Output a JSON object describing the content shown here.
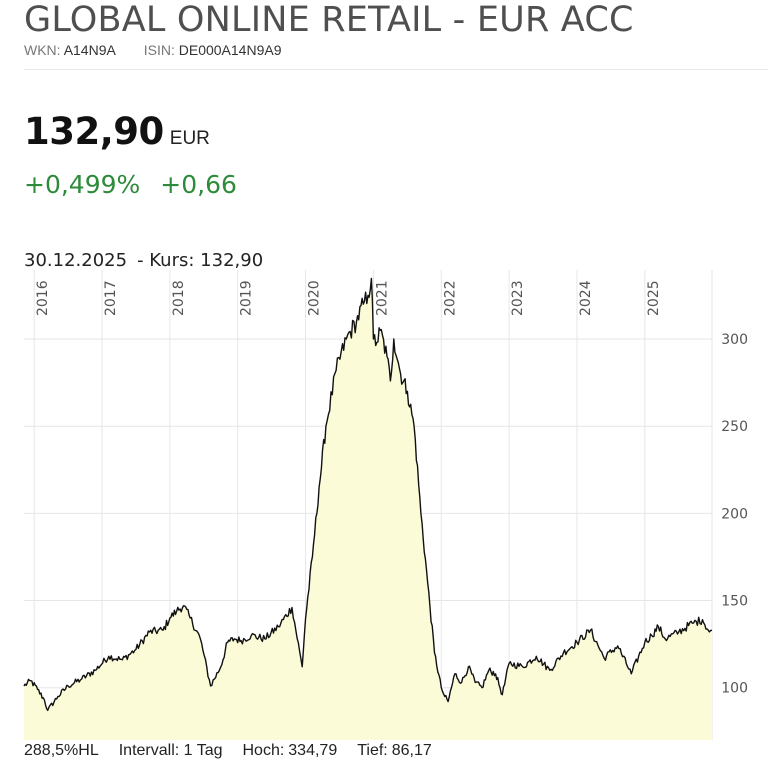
{
  "header": {
    "title": "GLOBAL ONLINE RETAIL - EUR ACC",
    "wkn_label": "WKN:",
    "wkn_value": "A14N9A",
    "isin_label": "ISIN:",
    "isin_value": "DE000A14N9A9"
  },
  "quote": {
    "price": "132,90",
    "currency": "EUR",
    "change_percent": "+0,499%",
    "change_abs": "+0,66"
  },
  "chart_caption": {
    "date": "30.12.2025",
    "kurs": "- Kurs: 132,90"
  },
  "footer": {
    "scale": "288,5%HL",
    "interval": "Intervall: 1 Tag",
    "high_label": "Hoch:",
    "high_value": "334,79",
    "low_label": "Tief:",
    "low_value": "86,17"
  },
  "colors": {
    "line": "#111111",
    "fill": "#fbfbd7",
    "grid": "#e6e6e6",
    "up": "#2e8b3a"
  },
  "chart_data": {
    "type": "area",
    "title": "",
    "xlabel": "",
    "ylabel": "",
    "ylim": [
      70,
      335
    ],
    "y_ticks": [
      100,
      150,
      200,
      250,
      300
    ],
    "x_tick_labels": [
      "2016",
      "2017",
      "2018",
      "2019",
      "2020",
      "2021",
      "2022",
      "2023",
      "2024",
      "2025"
    ],
    "grid": true,
    "series": [
      {
        "x": [
          2015.85,
          2015.95,
          2016.05,
          2016.15,
          2016.2,
          2016.35,
          2016.5,
          2016.7,
          2016.9,
          2017.1,
          2017.3,
          2017.5,
          2017.7,
          2017.9,
          2018.0,
          2018.1,
          2018.2,
          2018.3,
          2018.45,
          2018.6,
          2018.75,
          2018.85,
          2018.95,
          2019.05,
          2019.2,
          2019.4,
          2019.6,
          2019.8,
          2019.95,
          2020.0,
          2020.1,
          2020.2,
          2020.3,
          2020.45,
          2020.6,
          2020.75,
          2020.85,
          2020.92,
          2020.97,
          2021.0,
          2021.05,
          2021.1,
          2021.2,
          2021.25,
          2021.3,
          2021.4,
          2021.5,
          2021.6,
          2021.7,
          2021.8,
          2021.9,
          2022.0,
          2022.05,
          2022.1,
          2022.2,
          2022.3,
          2022.4,
          2022.5,
          2022.6,
          2022.7,
          2022.8,
          2022.9,
          2023.0,
          2023.2,
          2023.4,
          2023.6,
          2023.8,
          2024.0,
          2024.2,
          2024.4,
          2024.6,
          2024.8,
          2025.0,
          2025.1,
          2025.2,
          2025.3,
          2025.5,
          2025.7,
          2025.85,
          2025.95,
          2025.99
        ],
        "y": [
          101,
          104,
          99,
          93,
          87,
          95,
          101,
          105,
          110,
          118,
          116,
          122,
          132,
          133,
          140,
          144,
          147,
          140,
          128,
          101,
          112,
          126,
          128,
          127,
          130,
          128,
          135,
          146,
          112,
          140,
          175,
          215,
          250,
          282,
          300,
          310,
          320,
          325,
          334.79,
          300,
          298,
          305,
          290,
          276,
          300,
          280,
          270,
          250,
          200,
          160,
          120,
          100,
          95,
          92,
          108,
          103,
          112,
          103,
          100,
          110,
          108,
          96,
          114,
          112,
          118,
          110,
          120,
          126,
          133,
          117,
          124,
          108,
          126,
          130,
          135,
          128,
          132,
          137,
          139,
          132,
          132.9
        ]
      }
    ]
  }
}
